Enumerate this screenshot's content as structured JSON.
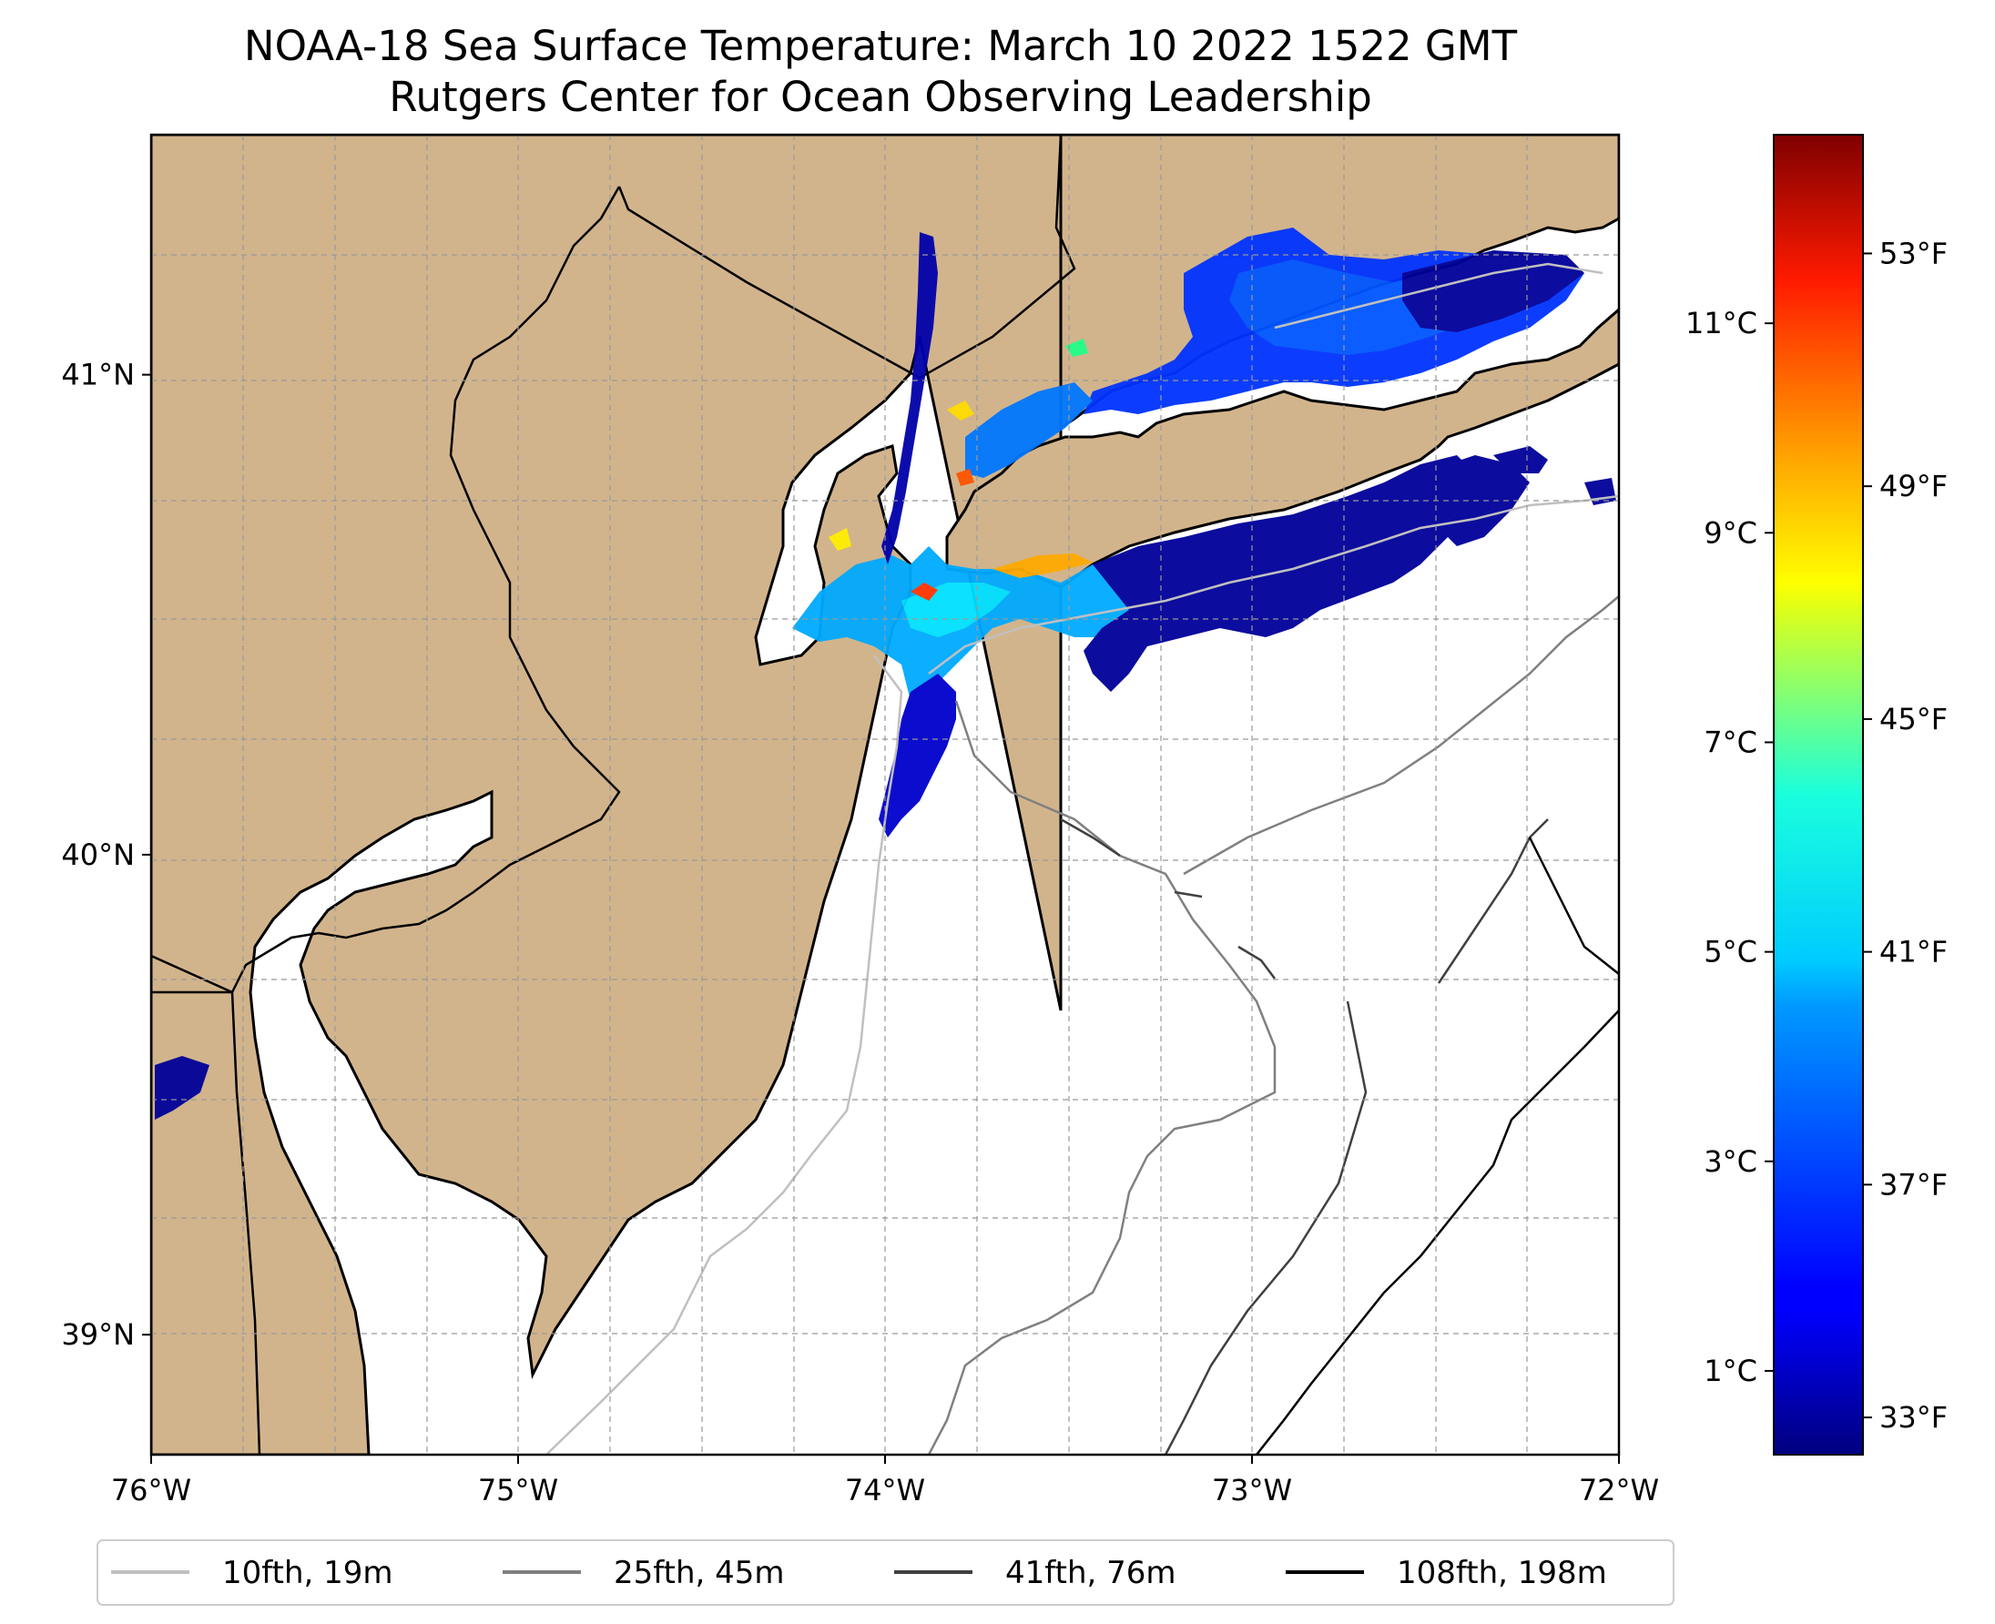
{
  "title": {
    "line1": "NOAA-18 Sea Surface Temperature: March 10 2022 1522 GMT",
    "line2": "Rutgers Center for Ocean Observing Leadership"
  },
  "map": {
    "lon_range": [
      -76,
      -72
    ],
    "lat_range": [
      38.75,
      41.5
    ],
    "land_color": "#d2b48c",
    "ocean_color": "#ffffff",
    "grid": true,
    "x_ticks": [
      {
        "value": -76,
        "label": "76°W"
      },
      {
        "value": -75,
        "label": "75°W"
      },
      {
        "value": -74,
        "label": "74°W"
      },
      {
        "value": -73,
        "label": "73°W"
      },
      {
        "value": -72,
        "label": "72°W"
      }
    ],
    "y_ticks": [
      {
        "value": 41,
        "label": "41°N"
      },
      {
        "value": 40,
        "label": "40°N"
      },
      {
        "value": 39,
        "label": "39°N"
      }
    ]
  },
  "colorbar": {
    "colormap": "jet",
    "range_c": [
      0.2,
      12.8
    ],
    "celsius_ticks": [
      {
        "value": 1,
        "label": "1°C"
      },
      {
        "value": 3,
        "label": "3°C"
      },
      {
        "value": 5,
        "label": "5°C"
      },
      {
        "value": 7,
        "label": "7°C"
      },
      {
        "value": 9,
        "label": "9°C"
      },
      {
        "value": 11,
        "label": "11°C"
      }
    ],
    "fahrenheit_ticks": [
      {
        "value": 33,
        "label": "33°F"
      },
      {
        "value": 37,
        "label": "37°F"
      },
      {
        "value": 41,
        "label": "41°F"
      },
      {
        "value": 45,
        "label": "45°F"
      },
      {
        "value": 49,
        "label": "49°F"
      },
      {
        "value": 53,
        "label": "53°F"
      }
    ]
  },
  "legend": {
    "placement": "bottom",
    "items": [
      {
        "label": "10fth, 19m",
        "color": "#c0c0c0"
      },
      {
        "label": "25fth, 45m",
        "color": "#808080"
      },
      {
        "label": "41fth, 76m",
        "color": "#404040"
      },
      {
        "label": "108fth, 198m",
        "color": "#000000"
      }
    ]
  }
}
